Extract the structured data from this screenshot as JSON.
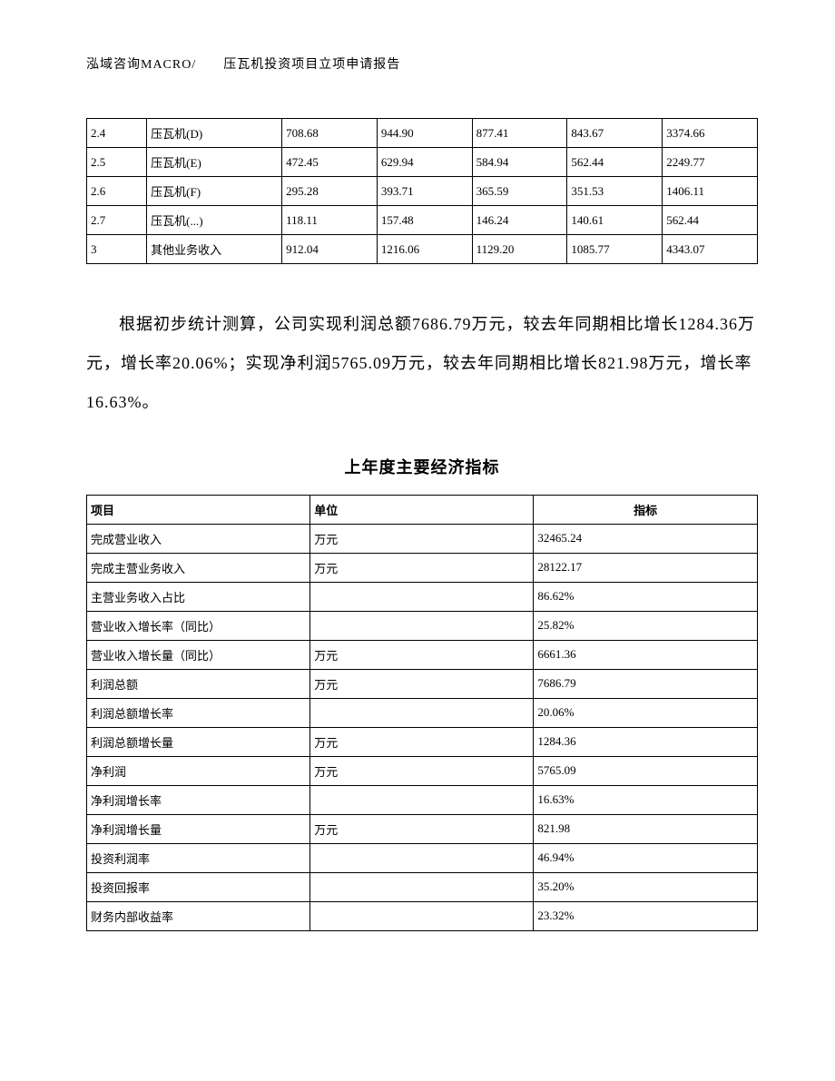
{
  "header": "泓域咨询MACRO/　　压瓦机投资项目立项申请报告",
  "table1": {
    "rows": [
      {
        "c1": "2.4",
        "c2": "压瓦机(D)",
        "c3": "708.68",
        "c4": "944.90",
        "c5": "877.41",
        "c6": "843.67",
        "c7": "3374.66"
      },
      {
        "c1": "2.5",
        "c2": "压瓦机(E)",
        "c3": "472.45",
        "c4": "629.94",
        "c5": "584.94",
        "c6": "562.44",
        "c7": "2249.77"
      },
      {
        "c1": "2.6",
        "c2": "压瓦机(F)",
        "c3": "295.28",
        "c4": "393.71",
        "c5": "365.59",
        "c6": "351.53",
        "c7": "1406.11"
      },
      {
        "c1": "2.7",
        "c2": "压瓦机(...)",
        "c3": "118.11",
        "c4": "157.48",
        "c5": "146.24",
        "c6": "140.61",
        "c7": "562.44"
      },
      {
        "c1": "3",
        "c2": "其他业务收入",
        "c3": "912.04",
        "c4": "1216.06",
        "c5": "1129.20",
        "c6": "1085.77",
        "c7": "4343.07"
      }
    ]
  },
  "paragraph": "根据初步统计测算，公司实现利润总额7686.79万元，较去年同期相比增长1284.36万元，增长率20.06%；实现净利润5765.09万元，较去年同期相比增长821.98万元，增长率16.63%。",
  "table2": {
    "title": "上年度主要经济指标",
    "headers": {
      "h1": "项目",
      "h2": "单位",
      "h3": "指标"
    },
    "rows": [
      {
        "c1": "完成营业收入",
        "c2": "万元",
        "c3": "32465.24"
      },
      {
        "c1": "完成主营业务收入",
        "c2": "万元",
        "c3": "28122.17"
      },
      {
        "c1": "主营业务收入占比",
        "c2": "",
        "c3": "86.62%"
      },
      {
        "c1": "营业收入增长率（同比）",
        "c2": "",
        "c3": "25.82%"
      },
      {
        "c1": "营业收入增长量（同比）",
        "c2": "万元",
        "c3": "6661.36"
      },
      {
        "c1": "利润总额",
        "c2": "万元",
        "c3": "7686.79"
      },
      {
        "c1": "利润总额增长率",
        "c2": "",
        "c3": "20.06%"
      },
      {
        "c1": "利润总额增长量",
        "c2": "万元",
        "c3": "1284.36"
      },
      {
        "c1": "净利润",
        "c2": "万元",
        "c3": "5765.09"
      },
      {
        "c1": "净利润增长率",
        "c2": "",
        "c3": "16.63%"
      },
      {
        "c1": "净利润增长量",
        "c2": "万元",
        "c3": "821.98"
      },
      {
        "c1": "投资利润率",
        "c2": "",
        "c3": "46.94%"
      },
      {
        "c1": "投资回报率",
        "c2": "",
        "c3": "35.20%"
      },
      {
        "c1": "财务内部收益率",
        "c2": "",
        "c3": "23.32%"
      }
    ]
  }
}
